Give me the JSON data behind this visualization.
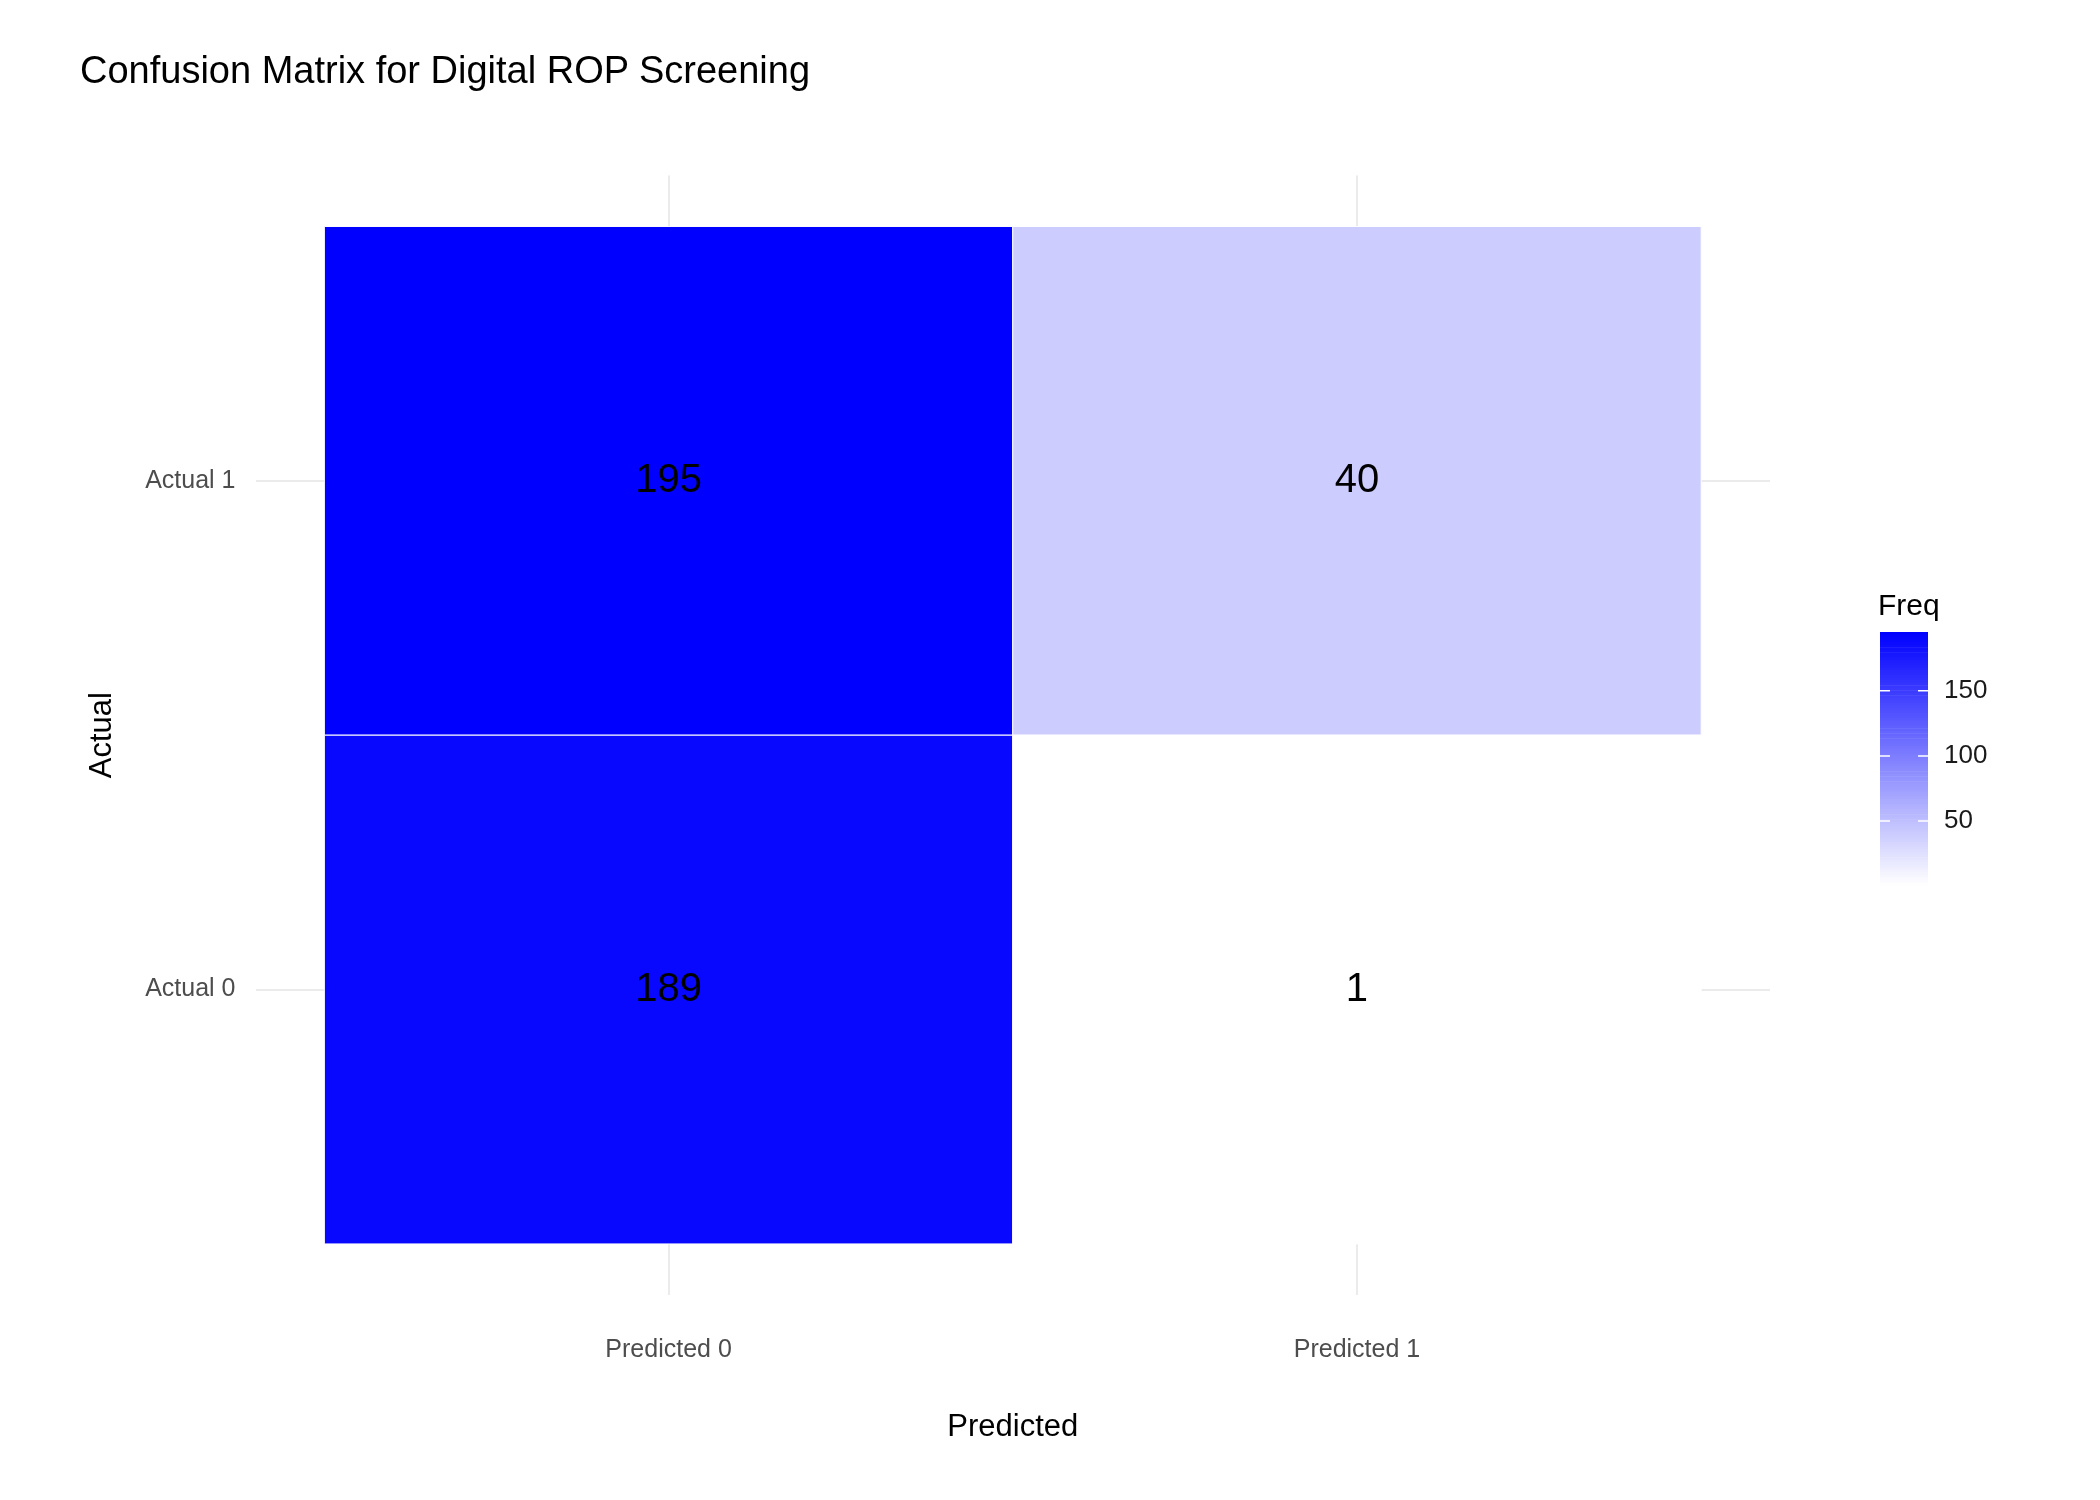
{
  "chart_data": {
    "type": "heatmap",
    "title": "Confusion Matrix for Digital ROP Screening",
    "xlabel": "Predicted",
    "ylabel": "Actual",
    "clabel": "Freq",
    "categories": [
      "Predicted 0",
      "Predicted 1"
    ],
    "y_categories": [
      "Actual 1",
      "Actual 0"
    ],
    "cells": [
      [
        195,
        40
      ],
      [
        189,
        1
      ]
    ],
    "data_labels": true,
    "clim": [
      1,
      195
    ],
    "cticks": [
      50,
      100,
      150
    ],
    "grid": true
  }
}
